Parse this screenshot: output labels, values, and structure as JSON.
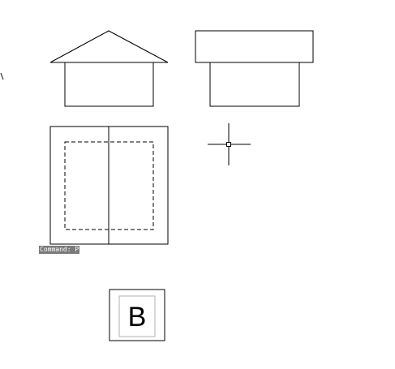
{
  "command_line": {
    "text": "Command: P"
  },
  "view_label": {
    "text": "B"
  },
  "colors": {
    "line": "#000000",
    "background": "#ffffff",
    "command_bg": "#7a7a7a",
    "label_frame": "#b0b0b0"
  },
  "objects": {
    "view_a": "house-with-gable-roof",
    "view_b": "house-with-flat-roof",
    "view_c": "plan-with-hidden-outline",
    "cursor": "crosshair-cursor"
  }
}
